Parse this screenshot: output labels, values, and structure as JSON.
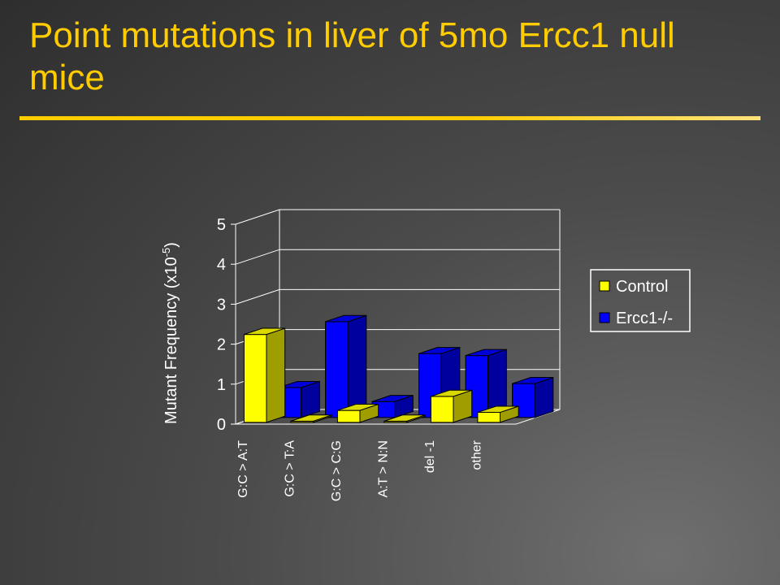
{
  "slide": {
    "title": "Point mutations in liver of 5mo Ercc1 null mice"
  },
  "chart_data": {
    "type": "bar",
    "title": "",
    "xlabel": "",
    "ylabel": "Mutant Frequency (x10",
    "ylabel_superscript": "-5",
    "ylabel_suffix": ")",
    "ylim": [
      0,
      5
    ],
    "yticks": [
      "0",
      "1",
      "2",
      "3",
      "4",
      "5"
    ],
    "grid": true,
    "legend_position": "right",
    "categories": [
      "G:C > A:T",
      "G:C > T:A",
      "G:C > C:G",
      "A:T > N:N",
      "del -1",
      "other"
    ],
    "series": [
      {
        "name": "Control",
        "color": "#ffff00",
        "values": [
          2.2,
          0.0,
          0.3,
          0.0,
          0.65,
          0.25
        ]
      },
      {
        "name": "Ercc1-/-",
        "color": "#0000ff",
        "values": [
          0.75,
          2.4,
          0.4,
          1.6,
          1.55,
          0.85
        ]
      }
    ],
    "colors": {
      "wall_line": "#ffffff",
      "bar_edge": "#000000"
    }
  }
}
